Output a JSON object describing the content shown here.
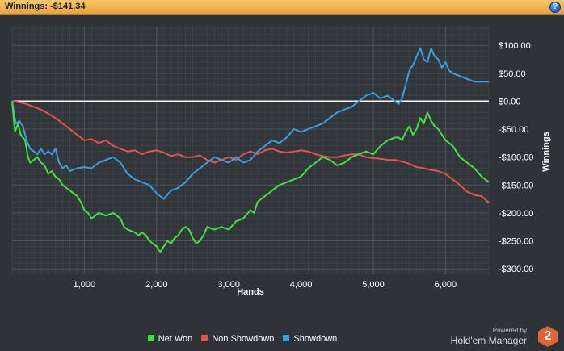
{
  "header": {
    "title": "Winnings: -$141.34",
    "help_label": "?"
  },
  "chart_data": {
    "type": "line",
    "title": "Winnings: -$141.34",
    "xlabel": "Hands",
    "ylabel": "Winnings",
    "xlim": [
      0,
      6600
    ],
    "ylim": [
      -310,
      135
    ],
    "x_ticks": [
      1000,
      2000,
      3000,
      4000,
      5000,
      6000
    ],
    "x_tick_labels": [
      "1,000",
      "2,000",
      "3,000",
      "4,000",
      "5,000",
      "6,000"
    ],
    "y_ticks": [
      100,
      50,
      0,
      -50,
      -100,
      -150,
      -200,
      -250,
      -300
    ],
    "y_tick_labels": [
      "$100.00",
      "$50.00",
      "$0.00",
      "-$50.00",
      "-$100.00",
      "-$150.00",
      "-$200.00",
      "-$250.00",
      "-$300.00"
    ],
    "grid": true,
    "legend_position": "bottom",
    "series": [
      {
        "name": "Net Won",
        "color": "#3fe23f",
        "x": [
          0,
          40,
          80,
          120,
          180,
          220,
          250,
          300,
          350,
          400,
          450,
          500,
          550,
          600,
          650,
          700,
          800,
          900,
          950,
          1000,
          1050,
          1100,
          1150,
          1200,
          1300,
          1400,
          1500,
          1550,
          1600,
          1700,
          1750,
          1800,
          1850,
          1900,
          1950,
          2000,
          2050,
          2100,
          2150,
          2200,
          2250,
          2300,
          2350,
          2400,
          2450,
          2500,
          2550,
          2600,
          2650,
          2700,
          2800,
          2900,
          3000,
          3100,
          3200,
          3300,
          3350,
          3400,
          3450,
          3500,
          3600,
          3700,
          3800,
          3900,
          4000,
          4100,
          4200,
          4300,
          4400,
          4500,
          4600,
          4700,
          4800,
          4900,
          5000,
          5100,
          5200,
          5300,
          5350,
          5400,
          5450,
          5500,
          5550,
          5600,
          5650,
          5700,
          5750,
          5800,
          5850,
          5900,
          5950,
          6000,
          6100,
          6150,
          6200,
          6300,
          6400,
          6500,
          6600
        ],
        "y": [
          0,
          -55,
          -40,
          -60,
          -70,
          -100,
          -110,
          -105,
          -100,
          -110,
          -115,
          -130,
          -125,
          -135,
          -140,
          -150,
          -160,
          -170,
          -180,
          -195,
          -200,
          -210,
          -205,
          -200,
          -205,
          -200,
          -210,
          -225,
          -230,
          -235,
          -240,
          -235,
          -240,
          -250,
          -255,
          -260,
          -270,
          -260,
          -250,
          -255,
          -245,
          -240,
          -230,
          -225,
          -230,
          -245,
          -255,
          -250,
          -240,
          -225,
          -230,
          -225,
          -230,
          -215,
          -210,
          -195,
          -200,
          -180,
          -175,
          -170,
          -160,
          -150,
          -145,
          -140,
          -135,
          -120,
          -110,
          -100,
          -105,
          -115,
          -110,
          -100,
          -95,
          -90,
          -95,
          -80,
          -70,
          -65,
          -65,
          -70,
          -55,
          -45,
          -60,
          -50,
          -30,
          -40,
          -20,
          -35,
          -45,
          -50,
          -60,
          -70,
          -80,
          -90,
          -100,
          -110,
          -120,
          -135,
          -145
        ]
      },
      {
        "name": "Non Showdown",
        "color": "#e8504a",
        "x": [
          0,
          100,
          200,
          300,
          400,
          500,
          600,
          700,
          800,
          900,
          1000,
          1100,
          1200,
          1300,
          1400,
          1500,
          1600,
          1700,
          1800,
          1900,
          2000,
          2100,
          2200,
          2300,
          2400,
          2500,
          2600,
          2700,
          2800,
          2900,
          3000,
          3100,
          3200,
          3300,
          3400,
          3500,
          3600,
          3700,
          3800,
          3900,
          4000,
          4100,
          4200,
          4300,
          4400,
          4500,
          4600,
          4700,
          4800,
          4900,
          5000,
          5100,
          5200,
          5300,
          5400,
          5500,
          5600,
          5700,
          5800,
          5900,
          6000,
          6100,
          6200,
          6300,
          6400,
          6500,
          6600
        ],
        "y": [
          0,
          -2,
          -5,
          -10,
          -15,
          -22,
          -30,
          -40,
          -50,
          -60,
          -70,
          -68,
          -75,
          -70,
          -80,
          -85,
          -90,
          -88,
          -95,
          -90,
          -88,
          -92,
          -98,
          -95,
          -100,
          -100,
          -97,
          -105,
          -110,
          -105,
          -100,
          -105,
          -95,
          -90,
          -95,
          -88,
          -85,
          -90,
          -92,
          -90,
          -88,
          -90,
          -95,
          -98,
          -100,
          -100,
          -97,
          -95,
          -95,
          -100,
          -102,
          -103,
          -105,
          -105,
          -108,
          -112,
          -118,
          -120,
          -123,
          -125,
          -130,
          -140,
          -150,
          -162,
          -168,
          -170,
          -182
        ]
      },
      {
        "name": "Showdown",
        "color": "#3a9de0",
        "x": [
          0,
          50,
          100,
          150,
          200,
          250,
          300,
          350,
          400,
          450,
          500,
          550,
          600,
          650,
          700,
          750,
          800,
          900,
          1000,
          1100,
          1200,
          1300,
          1400,
          1500,
          1600,
          1700,
          1800,
          1900,
          2000,
          2100,
          2200,
          2300,
          2400,
          2500,
          2600,
          2700,
          2800,
          2900,
          3000,
          3100,
          3200,
          3300,
          3400,
          3500,
          3600,
          3700,
          3800,
          3900,
          4000,
          4100,
          4200,
          4300,
          4400,
          4500,
          4600,
          4700,
          4800,
          4900,
          5000,
          5100,
          5200,
          5300,
          5350,
          5400,
          5450,
          5500,
          5550,
          5600,
          5650,
          5700,
          5750,
          5800,
          5850,
          5900,
          5950,
          6000,
          6050,
          6100,
          6200,
          6300,
          6400,
          6500,
          6600
        ],
        "y": [
          0,
          -40,
          -35,
          -45,
          -70,
          -85,
          -90,
          -95,
          -85,
          -95,
          -90,
          -95,
          -85,
          -110,
          -120,
          -115,
          -125,
          -120,
          -118,
          -120,
          -110,
          -105,
          -100,
          -110,
          -130,
          -140,
          -145,
          -150,
          -165,
          -175,
          -160,
          -155,
          -145,
          -130,
          -120,
          -110,
          -100,
          -105,
          -110,
          -100,
          -110,
          -105,
          -90,
          -80,
          -70,
          -75,
          -65,
          -50,
          -55,
          -50,
          -45,
          -40,
          -30,
          -20,
          -15,
          -10,
          0,
          10,
          15,
          5,
          10,
          0,
          -5,
          5,
          30,
          55,
          65,
          80,
          95,
          75,
          70,
          95,
          80,
          75,
          60,
          70,
          55,
          50,
          45,
          40,
          35,
          35,
          35
        ]
      }
    ]
  },
  "legend": {
    "items": [
      {
        "label": "Net Won",
        "color": "#3fe23f"
      },
      {
        "label": "Non Showdown",
        "color": "#e8504a"
      },
      {
        "label": "Showdown",
        "color": "#3a9de0"
      }
    ]
  },
  "branding": {
    "powered_by": "Powered by",
    "product": "Hold'em Manager",
    "logo_text": "2"
  }
}
